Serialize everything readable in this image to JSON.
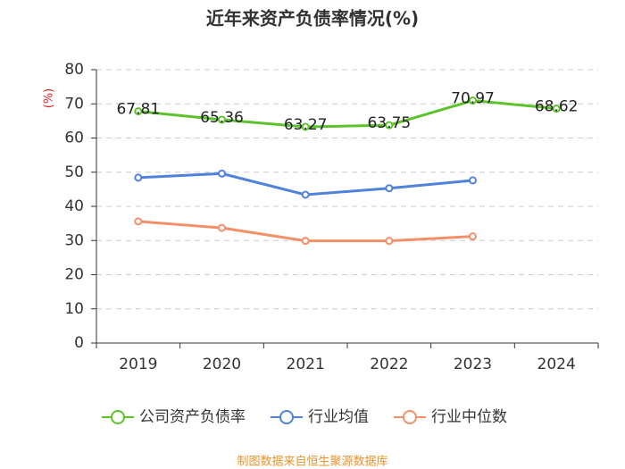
{
  "chart_data": {
    "type": "line",
    "title": "近年来资产负债率情况(%)",
    "y_label": "(%)",
    "categories": [
      "2019",
      "2020",
      "2021",
      "2022",
      "2023",
      "2024"
    ],
    "series": [
      {
        "name": "公司资产负债率",
        "color": "#5cc42a",
        "values": [
          67.81,
          65.36,
          63.27,
          63.75,
          70.97,
          68.62
        ],
        "show_labels": true
      },
      {
        "name": "行业均值",
        "color": "#4e82dd",
        "values": [
          48.4,
          49.6,
          43.4,
          45.3,
          47.6,
          null
        ]
      },
      {
        "name": "行业中位数",
        "color": "#f3906a",
        "values": [
          35.6,
          33.7,
          29.9,
          29.9,
          31.2,
          null
        ]
      }
    ],
    "ylim": [
      0,
      80
    ],
    "yticks": [
      0,
      10,
      20,
      30,
      40,
      50,
      60,
      70,
      80
    ],
    "grid": true,
    "source": "制图数据来自恒生聚源数据库"
  }
}
